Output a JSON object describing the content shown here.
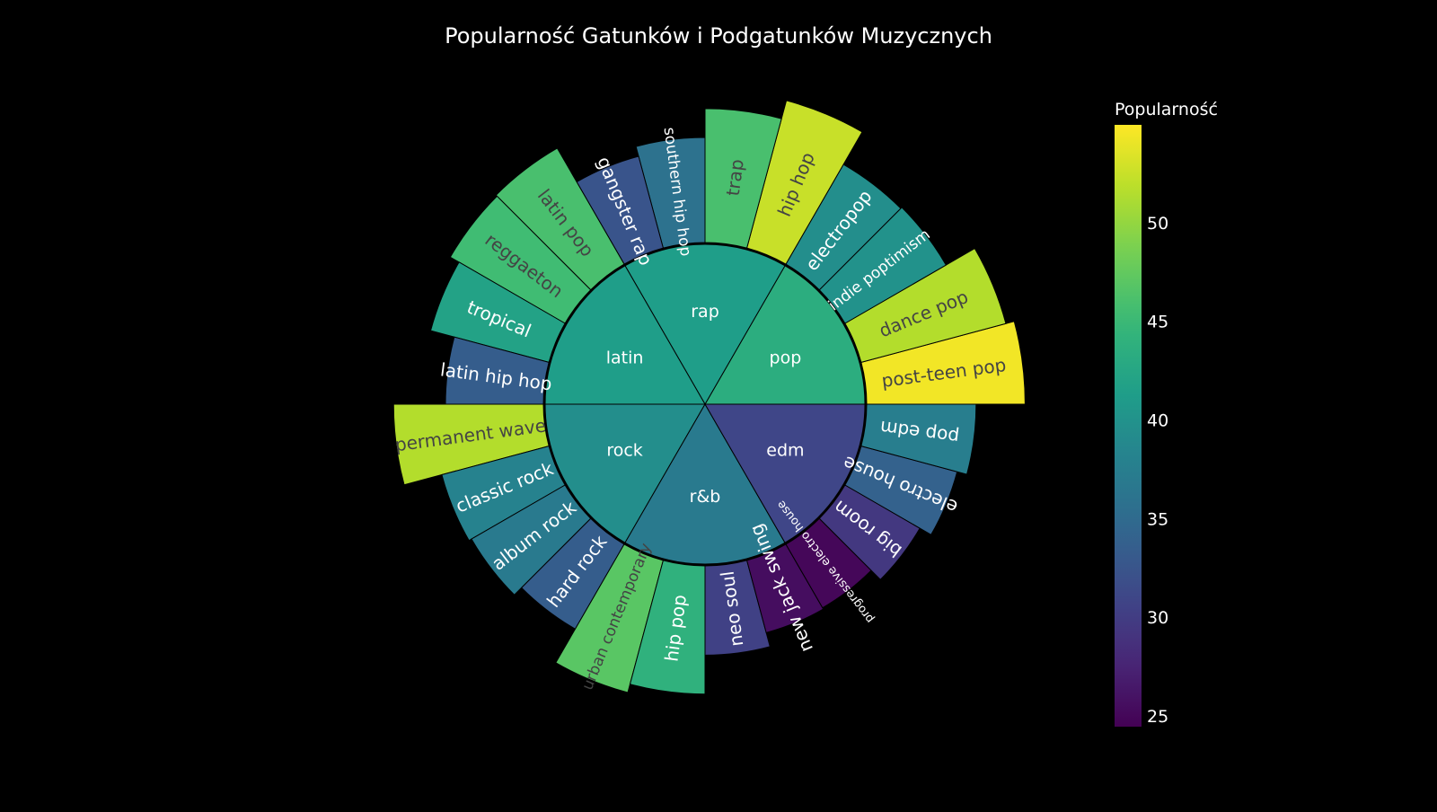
{
  "chart_data": {
    "type": "sunburst",
    "title": "Popularność Gatunków i Podgatunków Muzycznych",
    "colorbar": {
      "title": "Popularność",
      "colorscale": "viridis",
      "range": [
        24.5,
        55
      ],
      "ticks": [
        25,
        30,
        35,
        40,
        45,
        50
      ]
    },
    "genres": [
      {
        "name": "pop",
        "value": 43.5,
        "children": [
          {
            "name": "post-teen pop",
            "value": 54.5
          },
          {
            "name": "dance pop",
            "value": 51.5
          },
          {
            "name": "indie poptimism",
            "value": 40.0
          },
          {
            "name": "electropop",
            "value": 39.5
          }
        ]
      },
      {
        "name": "rap",
        "value": 41.5,
        "children": [
          {
            "name": "hip hop",
            "value": 52.5
          },
          {
            "name": "trap",
            "value": 46.0
          },
          {
            "name": "southern hip hop",
            "value": 36.0
          },
          {
            "name": "gangster rap",
            "value": 32.5
          }
        ]
      },
      {
        "name": "latin",
        "value": 41.5,
        "children": [
          {
            "name": "latin pop",
            "value": 46.0
          },
          {
            "name": "reggaeton",
            "value": 45.5
          },
          {
            "name": "tropical",
            "value": 42.0
          },
          {
            "name": "latin hip hop",
            "value": 33.5
          }
        ]
      },
      {
        "name": "rock",
        "value": 39.5,
        "children": [
          {
            "name": "permanent wave",
            "value": 51.5
          },
          {
            "name": "classic rock",
            "value": 38.0
          },
          {
            "name": "album rock",
            "value": 37.0
          },
          {
            "name": "hard rock",
            "value": 33.5
          }
        ]
      },
      {
        "name": "r&b",
        "value": 37.0,
        "children": [
          {
            "name": "urban contemporary",
            "value": 47.0
          },
          {
            "name": "hip pop",
            "value": 44.0
          },
          {
            "name": "neo soul",
            "value": 30.5
          },
          {
            "name": "new jack swing",
            "value": 25.5
          }
        ]
      },
      {
        "name": "edm",
        "value": 31.0,
        "children": [
          {
            "name": "progressive electro house",
            "value": 25.0
          },
          {
            "name": "big room",
            "value": 29.5
          },
          {
            "name": "electro house",
            "value": 34.0
          },
          {
            "name": "pop edm",
            "value": 37.5
          }
        ]
      }
    ]
  }
}
